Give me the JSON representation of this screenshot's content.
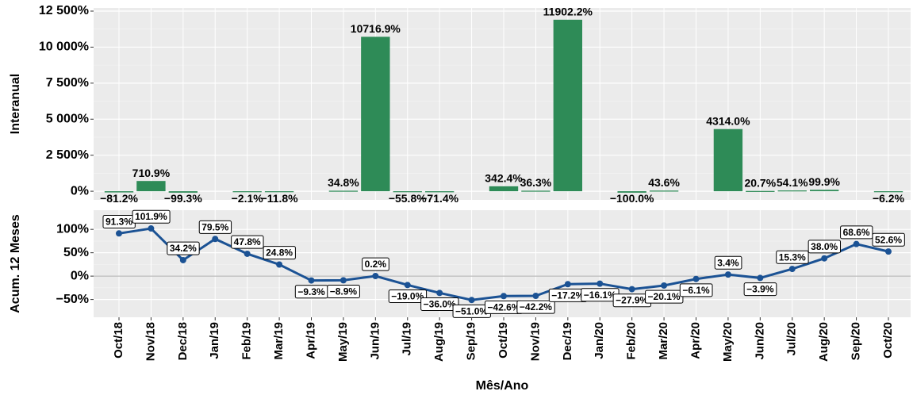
{
  "chart_data": [
    {
      "type": "bar",
      "y_label": "Interanual",
      "color": "#2e8b57",
      "values": [
        -81.2,
        710.9,
        -99.3,
        null,
        -2.1,
        -11.8,
        null,
        34.8,
        10716.9,
        -55.8,
        -71.4,
        null,
        342.4,
        36.3,
        11902.2,
        null,
        -100.0,
        43.6,
        null,
        4314.0,
        20.7,
        54.1,
        99.9,
        null,
        -6.2
      ],
      "value_labels": [
        "−81.2%",
        "710.9%",
        "−99.3%",
        null,
        "−2.1%",
        "−11.8%",
        null,
        "34.8%",
        "10716.9%",
        "−55.8%",
        "−71.4%",
        null,
        "342.4%",
        "36.3%",
        "11902.2%",
        null,
        "−100.0%",
        "43.6%",
        null,
        "4314.0%",
        "20.7%",
        "54.1%",
        "99.9%",
        null,
        "−6.2%"
      ],
      "ylim": [
        -600,
        12720
      ],
      "yticks": [
        {
          "value": 0,
          "label": "0%"
        },
        {
          "value": 2500,
          "label": "2 500%"
        },
        {
          "value": 5000,
          "label": "5 000%"
        },
        {
          "value": 7500,
          "label": "7 500%"
        },
        {
          "value": 10000,
          "label": "10 000%"
        },
        {
          "value": 12500,
          "label": "12 500%"
        }
      ],
      "grid": true
    },
    {
      "type": "line",
      "y_label": "Acum. 12 Meses",
      "x_label": "Mês/Ano",
      "color": "#1b5294",
      "categories": [
        "Oct/18",
        "Nov/18",
        "Dec/18",
        "Jan/19",
        "Feb/19",
        "Mar/19",
        "Apr/19",
        "May/19",
        "Jun/19",
        "Jul/19",
        "Aug/19",
        "Sep/19",
        "Oct/19",
        "Nov/19",
        "Dec/19",
        "Jan/20",
        "Feb/20",
        "Mar/20",
        "Apr/20",
        "May/20",
        "Jun/20",
        "Jul/20",
        "Aug/20",
        "Sep/20",
        "Oct/20"
      ],
      "values": [
        91.3,
        101.9,
        34.2,
        79.5,
        47.8,
        24.8,
        -9.3,
        -8.9,
        0.2,
        -19.0,
        -36.0,
        -51.0,
        -42.6,
        -42.2,
        -17.2,
        -16.1,
        -27.9,
        -20.1,
        -6.1,
        3.4,
        -3.9,
        15.3,
        38.0,
        68.6,
        52.6
      ],
      "value_labels": [
        "91.3%",
        "101.9%",
        "34.2%",
        "79.5%",
        "47.8%",
        "24.8%",
        "−9.3%",
        "−8.9%",
        "0.2%",
        "−19.0%",
        "−36.0%",
        "−51.0%",
        "−42.6%",
        "−42.2%",
        "−17.2%",
        "−16.1%",
        "−27.9%",
        "−20.1%",
        "−6.1%",
        "3.4%",
        "−3.9%",
        "15.3%",
        "38.0%",
        "68.6%",
        "52.6%"
      ],
      "ylim": [
        -88,
        141
      ],
      "yticks": [
        {
          "value": -50,
          "label": "−50%"
        },
        {
          "value": 0,
          "label": "0%"
        },
        {
          "value": 50,
          "label": "50%"
        },
        {
          "value": 100,
          "label": "100%"
        }
      ],
      "grid": true
    }
  ]
}
